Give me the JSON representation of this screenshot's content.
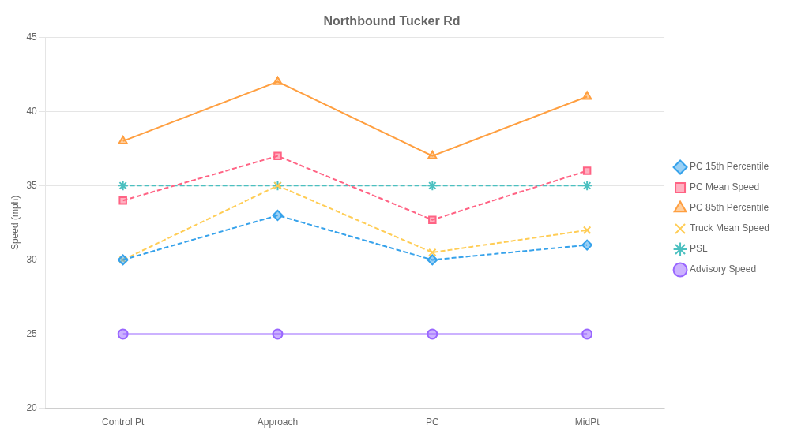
{
  "chart_data": {
    "type": "line",
    "title": "Northbound Tucker Rd",
    "categories": [
      "Control Pt",
      "Approach",
      "PC",
      "MidPt"
    ],
    "series": [
      {
        "name": "PC 15th Percentile",
        "values": [
          30,
          33,
          30,
          31
        ],
        "marker": "diamond",
        "line_style": "dashed"
      },
      {
        "name": "PC Mean Speed",
        "values": [
          34,
          37,
          32.7,
          36
        ],
        "marker": "square",
        "line_style": "dashed"
      },
      {
        "name": "PC 85th Percentile",
        "values": [
          38,
          42,
          37,
          41
        ],
        "marker": "triangle",
        "line_style": "solid"
      },
      {
        "name": "Truck Mean Speed",
        "values": [
          30,
          35,
          30.5,
          32
        ],
        "marker": "x",
        "line_style": "dashed"
      },
      {
        "name": "PSL",
        "values": [
          35,
          35,
          35,
          35
        ],
        "marker": "star",
        "line_style": "dashed"
      },
      {
        "name": "Advisory Speed",
        "values": [
          25,
          25,
          25,
          25
        ],
        "marker": "circle",
        "line_style": "solid"
      }
    ],
    "ylabel": "Speed (mph)",
    "ylim": [
      20,
      45
    ],
    "yticks": [
      20,
      25,
      30,
      35,
      40,
      45
    ],
    "grid": "y",
    "legend": "right"
  }
}
